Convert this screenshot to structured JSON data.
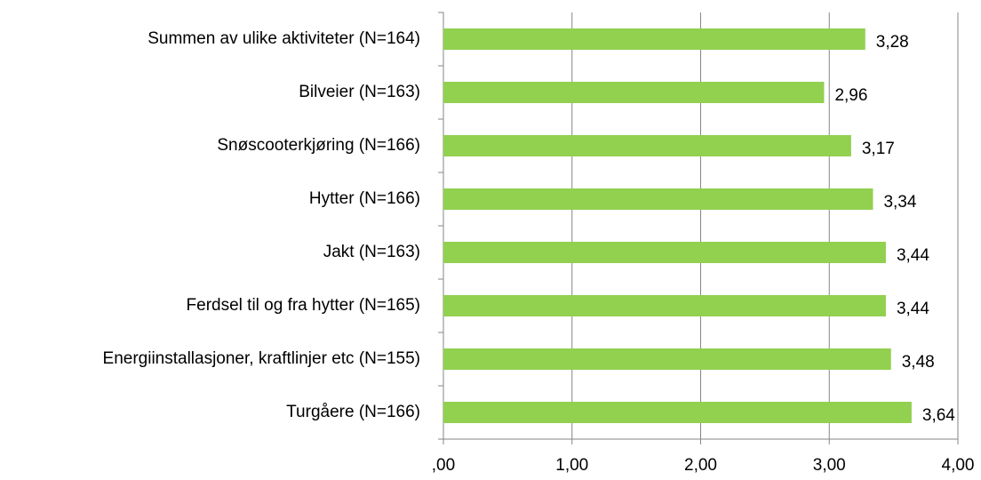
{
  "chart_data": {
    "type": "bar",
    "orientation": "horizontal",
    "categories": [
      "Summen av ulike aktiviteter (N=164)",
      "Bilveier (N=163)",
      "Snøscooterkjøring (N=166)",
      "Hytter (N=166)",
      "Jakt (N=163)",
      "Ferdsel til og fra hytter (N=165)",
      "Energiinstallasjoner, kraftlinjer etc (N=155)",
      "Turgåere (N=166)"
    ],
    "values": [
      3.28,
      2.96,
      3.17,
      3.34,
      3.44,
      3.44,
      3.48,
      3.64
    ],
    "value_labels": [
      "3,28",
      "2,96",
      "3,17",
      "3,34",
      "3,44",
      "3,44",
      "3,48",
      "3,64"
    ],
    "color": "#92d050",
    "xlim": [
      0,
      4
    ],
    "xticks": [
      {
        "value": 0,
        "label": ",00"
      },
      {
        "value": 1,
        "label": "1,00"
      },
      {
        "value": 2,
        "label": "2,00"
      },
      {
        "value": 3,
        "label": "3,00"
      },
      {
        "value": 4,
        "label": "4,00"
      }
    ],
    "grid": true
  }
}
